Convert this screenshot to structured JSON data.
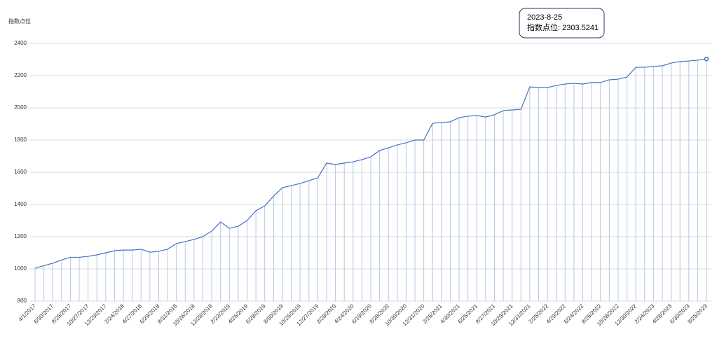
{
  "chart_data": {
    "type": "line",
    "y_label": "指数点位",
    "categories": [
      "4/1/2017",
      null,
      "6/30/2017",
      null,
      "8/25/2017",
      null,
      "10/27/2017",
      null,
      "12/29/2017",
      null,
      "2/24/2018",
      null,
      "4/27/2018",
      null,
      "6/29/2018",
      null,
      "8/31/2018",
      null,
      "10/26/2018",
      null,
      "12/28/2018",
      null,
      "2/22/2019",
      null,
      "4/26/2019",
      null,
      "6/28/2019",
      null,
      "8/30/2019",
      null,
      "10/25/2019",
      null,
      "12/27/2019",
      null,
      "2/28/2020",
      null,
      "4/24/2020",
      null,
      "6/19/2020",
      null,
      "8/28/2020",
      null,
      "10/30/2020",
      null,
      "12/31/2020",
      null,
      "2/26/2021",
      null,
      "4/30/2021",
      null,
      "6/25/2021",
      null,
      "8/27/2021",
      null,
      "10/29/2021",
      null,
      "12/31/2021",
      null,
      "2/25/2022",
      null,
      "4/29/2022",
      null,
      "6/24/2022",
      null,
      "8/26/2022",
      null,
      "10/28/2022",
      null,
      "12/30/2022",
      null,
      "2/24/2023",
      null,
      "4/28/2023",
      null,
      "6/30/2023",
      null,
      "8/25/2023"
    ],
    "series": [
      {
        "name": "指数点位",
        "color": "#4472c4",
        "values": [
          1004,
          1020,
          1035,
          1055,
          1072,
          1072,
          1078,
          1087,
          1100,
          1113,
          1117,
          1117,
          1122,
          1104,
          1109,
          1122,
          1157,
          1170,
          1183,
          1200,
          1235,
          1291,
          1252,
          1265,
          1300,
          1361,
          1391,
          1452,
          1504,
          1517,
          1530,
          1548,
          1565,
          1657,
          1648,
          1657,
          1665,
          1678,
          1696,
          1735,
          1752,
          1770,
          1783,
          1800,
          1800,
          1904,
          1909,
          1913,
          1939,
          1948,
          1952,
          1943,
          1957,
          1983,
          1987,
          1991,
          2130,
          2126,
          2126,
          2139,
          2148,
          2152,
          2148,
          2157,
          2157,
          2174,
          2178,
          2191,
          2252,
          2252,
          2257,
          2261,
          2278,
          2287,
          2291,
          2296,
          2303.5241
        ]
      }
    ],
    "drop_line_color": "#b4c7e7",
    "ylim": [
      800,
      2400
    ],
    "yticks": [
      800,
      1000,
      1200,
      1400,
      1600,
      1800,
      2000,
      2200,
      2400
    ],
    "grid": true,
    "tooltip": {
      "title": "2023-8-25",
      "text": "指数点位: 2303.5241"
    }
  }
}
